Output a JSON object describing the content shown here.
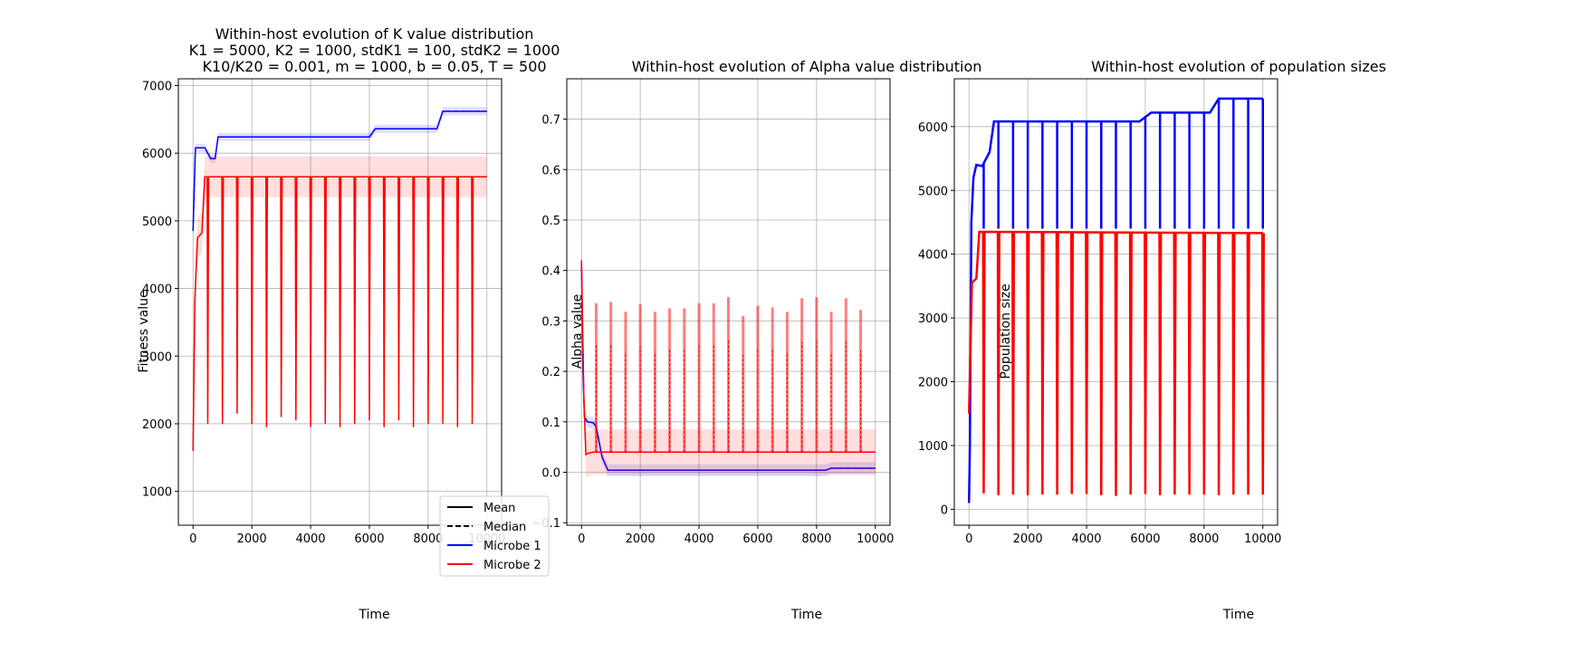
{
  "chart_data": [
    {
      "type": "line",
      "title_lines": [
        "Within-host evolution of K value distribution",
        "K1 = 5000, K2 = 1000, stdK1 = 100, stdK2 = 1000",
        "K10/K20 = 0.001, m = 1000, b = 0.05, T = 500"
      ],
      "xlabel": "Time",
      "ylabel": "Fitness value",
      "xlim": [
        -500,
        10500
      ],
      "ylim": [
        500,
        7100
      ],
      "xticks": [
        0,
        2000,
        4000,
        6000,
        8000,
        10000
      ],
      "yticks": [
        1000,
        2000,
        3000,
        4000,
        5000,
        6000,
        7000
      ],
      "grid": true,
      "legend": {
        "position": "lower-right",
        "entries": [
          {
            "label": "Mean",
            "color": "#000000",
            "style": "solid"
          },
          {
            "label": "Median",
            "color": "#000000",
            "style": "dashed"
          },
          {
            "label": "Microbe 1",
            "color": "#0000ff",
            "style": "solid"
          },
          {
            "label": "Microbe 2",
            "color": "#ff0000",
            "style": "solid"
          }
        ]
      },
      "series": [
        {
          "name": "Microbe 1",
          "color": "#0000ff",
          "points": [
            [
              0,
              4850
            ],
            [
              80,
              6080
            ],
            [
              400,
              6080
            ],
            [
              600,
              5920
            ],
            [
              750,
              5920
            ],
            [
              850,
              6240
            ],
            [
              6000,
              6240
            ],
            [
              6200,
              6360
            ],
            [
              8300,
              6360
            ],
            [
              8500,
              6620
            ],
            [
              10000,
              6620
            ]
          ],
          "band_width": 60
        },
        {
          "name": "Microbe 2",
          "color": "#ff0000",
          "points": [
            [
              0,
              1600
            ],
            [
              60,
              3800
            ],
            [
              150,
              4750
            ],
            [
              300,
              4820
            ],
            [
              400,
              5650
            ],
            [
              10000,
              5650
            ]
          ],
          "band_width": 300,
          "dips": [
            {
              "t": 500,
              "v": 2000
            },
            {
              "t": 1000,
              "v": 2000
            },
            {
              "t": 1500,
              "v": 2150
            },
            {
              "t": 2000,
              "v": 2000
            },
            {
              "t": 2500,
              "v": 1950
            },
            {
              "t": 3000,
              "v": 2100
            },
            {
              "t": 3500,
              "v": 2050
            },
            {
              "t": 4000,
              "v": 1950
            },
            {
              "t": 4500,
              "v": 2000
            },
            {
              "t": 5000,
              "v": 1950
            },
            {
              "t": 5500,
              "v": 2000
            },
            {
              "t": 6000,
              "v": 2050
            },
            {
              "t": 6500,
              "v": 1950
            },
            {
              "t": 7000,
              "v": 2050
            },
            {
              "t": 7500,
              "v": 1950
            },
            {
              "t": 8000,
              "v": 2000
            },
            {
              "t": 8500,
              "v": 2000
            },
            {
              "t": 9000,
              "v": 1950
            },
            {
              "t": 9500,
              "v": 2000
            }
          ]
        }
      ]
    },
    {
      "type": "line",
      "title_lines": [
        "Within-host evolution of Alpha value distribution"
      ],
      "xlabel": "Time",
      "ylabel": "Alpha value",
      "xlim": [
        -500,
        10500
      ],
      "ylim": [
        -0.105,
        0.78
      ],
      "xticks": [
        0,
        2000,
        4000,
        6000,
        8000,
        10000
      ],
      "yticks": [
        -0.1,
        0.0,
        0.1,
        0.2,
        0.3,
        0.4,
        0.5,
        0.6,
        0.7
      ],
      "ytick_labels": [
        "−0.1",
        "0.0",
        "0.1",
        "0.2",
        "0.3",
        "0.4",
        "0.5",
        "0.6",
        "0.7"
      ],
      "grid": true,
      "series": [
        {
          "name": "Microbe 1",
          "color": "#0000ff",
          "points": [
            [
              0,
              0.42
            ],
            [
              50,
              0.2
            ],
            [
              100,
              0.11
            ],
            [
              200,
              0.1
            ],
            [
              400,
              0.098
            ],
            [
              500,
              0.09
            ],
            [
              700,
              0.03
            ],
            [
              900,
              0.004
            ],
            [
              8300,
              0.004
            ],
            [
              8500,
              0.008
            ],
            [
              10000,
              0.008
            ]
          ],
          "band_width": 0.012
        },
        {
          "name": "Microbe 2",
          "color": "#ff0000",
          "points": [
            [
              0,
              0.42
            ],
            [
              80,
              0.15
            ],
            [
              150,
              0.035
            ],
            [
              250,
              0.038
            ],
            [
              400,
              0.04
            ],
            [
              10000,
              0.04
            ]
          ],
          "band_width": 0.045,
          "spikes": [
            {
              "t": 500,
              "v": 0.335
            },
            {
              "t": 1000,
              "v": 0.338
            },
            {
              "t": 1500,
              "v": 0.318
            },
            {
              "t": 2000,
              "v": 0.333
            },
            {
              "t": 2500,
              "v": 0.318
            },
            {
              "t": 3000,
              "v": 0.325
            },
            {
              "t": 3500,
              "v": 0.325
            },
            {
              "t": 4000,
              "v": 0.335
            },
            {
              "t": 4500,
              "v": 0.335
            },
            {
              "t": 5000,
              "v": 0.347
            },
            {
              "t": 5500,
              "v": 0.31
            },
            {
              "t": 6000,
              "v": 0.33
            },
            {
              "t": 6500,
              "v": 0.327
            },
            {
              "t": 7000,
              "v": 0.318
            },
            {
              "t": 7500,
              "v": 0.345
            },
            {
              "t": 8000,
              "v": 0.347
            },
            {
              "t": 8500,
              "v": 0.318
            },
            {
              "t": 9000,
              "v": 0.345
            },
            {
              "t": 9500,
              "v": 0.322
            }
          ]
        }
      ]
    },
    {
      "type": "line",
      "title_lines": [
        "Within-host evolution of population sizes"
      ],
      "xlabel": "Time",
      "ylabel": "Population size",
      "xlim": [
        -500,
        10500
      ],
      "ylim": [
        -250,
        6750
      ],
      "xticks": [
        0,
        2000,
        4000,
        6000,
        8000,
        10000
      ],
      "yticks": [
        0,
        1000,
        2000,
        3000,
        4000,
        5000,
        6000
      ],
      "grid": true,
      "series": [
        {
          "name": "Microbe 1",
          "color": "#0000ff",
          "points": [
            [
              0,
              100
            ],
            [
              30,
              1000
            ],
            [
              80,
              4500
            ],
            [
              150,
              5200
            ],
            [
              250,
              5400
            ],
            [
              450,
              5380
            ],
            [
              700,
              5600
            ],
            [
              850,
              6080
            ],
            [
              5800,
              6080
            ],
            [
              6000,
              6150
            ],
            [
              6200,
              6220
            ],
            [
              8200,
              6220
            ],
            [
              8500,
              6440
            ],
            [
              10000,
              6440
            ]
          ],
          "spike_floor": 4400
        },
        {
          "name": "Microbe 2",
          "color": "#ff0000",
          "points": [
            [
              0,
              1500
            ],
            [
              100,
              3550
            ],
            [
              250,
              3620
            ],
            [
              350,
              4350
            ],
            [
              10000,
              4330
            ]
          ],
          "dips": [
            {
              "t": 500,
              "v": 250
            },
            {
              "t": 1000,
              "v": 220
            },
            {
              "t": 1500,
              "v": 230
            },
            {
              "t": 2000,
              "v": 220
            },
            {
              "t": 2500,
              "v": 230
            },
            {
              "t": 3000,
              "v": 230
            },
            {
              "t": 3500,
              "v": 240
            },
            {
              "t": 4000,
              "v": 240
            },
            {
              "t": 4500,
              "v": 220
            },
            {
              "t": 5000,
              "v": 210
            },
            {
              "t": 5500,
              "v": 230
            },
            {
              "t": 6000,
              "v": 240
            },
            {
              "t": 6500,
              "v": 220
            },
            {
              "t": 7000,
              "v": 230
            },
            {
              "t": 7500,
              "v": 230
            },
            {
              "t": 8000,
              "v": 230
            },
            {
              "t": 8500,
              "v": 220
            },
            {
              "t": 9000,
              "v": 230
            },
            {
              "t": 9500,
              "v": 230
            },
            {
              "t": 10000,
              "v": 230
            }
          ]
        }
      ]
    }
  ]
}
